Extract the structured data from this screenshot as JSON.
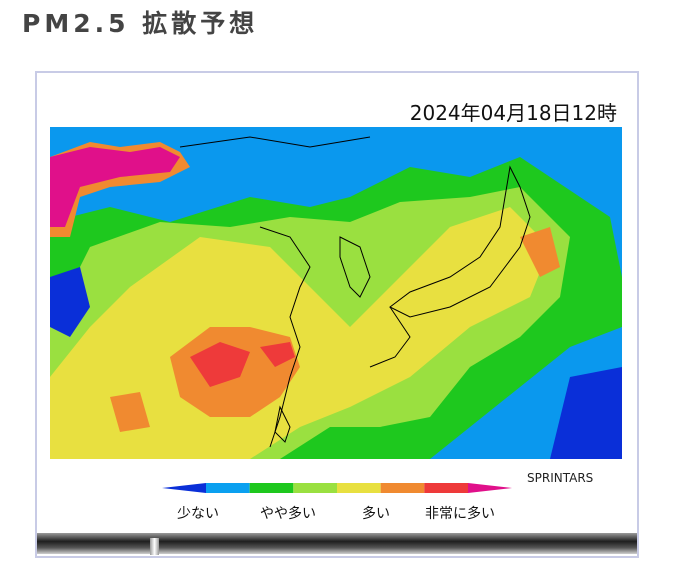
{
  "title": "PM2.5 拡散予想",
  "map": {
    "timestamp": "2024年04月18日12時",
    "credit": "SPRINTARS",
    "legend": {
      "colors": [
        "#0a2fd8",
        "#0aa0f0",
        "#1ec81e",
        "#9ae040",
        "#e8e040",
        "#f08a30",
        "#ee3a3a",
        "#e0108a"
      ],
      "labels": [
        "少ない",
        "やや多い",
        "多い",
        "非常に多い"
      ]
    }
  }
}
